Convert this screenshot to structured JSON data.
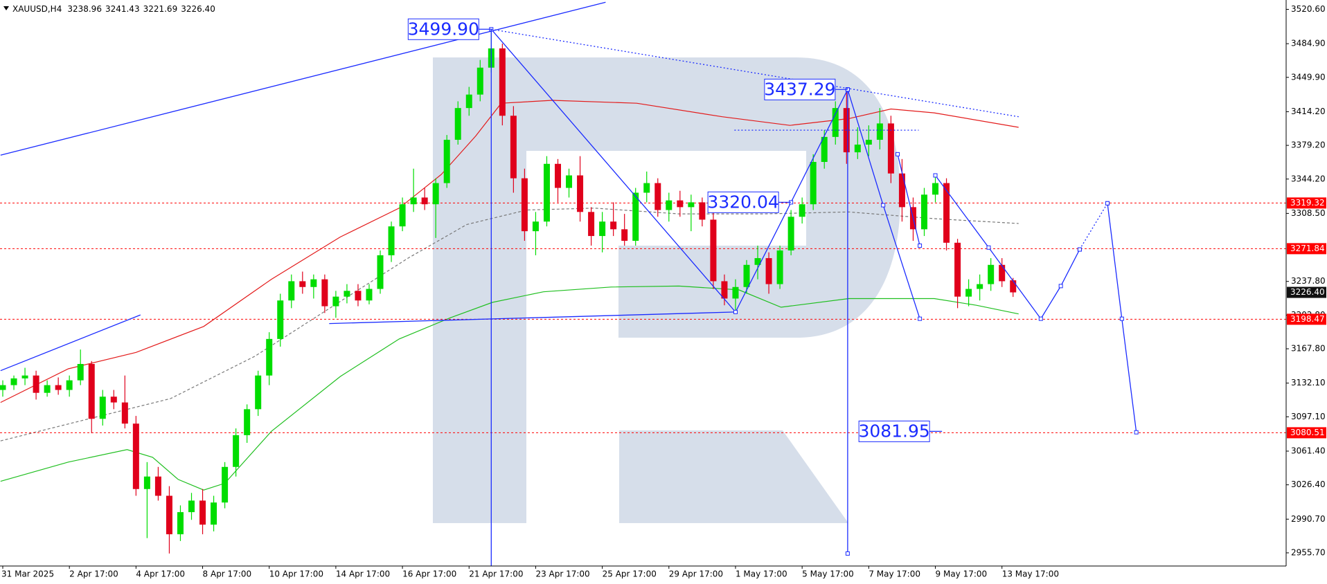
{
  "chart_data": {
    "type": "candlestick",
    "header": {
      "symbol": "XAUUSD,H4",
      "ohlc": [
        "3238.96",
        "3241.43",
        "3221.69",
        "3226.40"
      ]
    },
    "categories": [
      "31 Mar 2025",
      null,
      null,
      null,
      null,
      null,
      "2 Apr 17:00",
      null,
      null,
      null,
      null,
      null,
      "4 Apr 17:00",
      null,
      null,
      null,
      null,
      null,
      "8 Apr 17:00",
      null,
      null,
      null,
      null,
      null,
      "10 Apr 17:00",
      null,
      null,
      null,
      null,
      null,
      "14 Apr 17:00",
      null,
      null,
      null,
      null,
      null,
      "16 Apr 17:00",
      null,
      null,
      null,
      null,
      null,
      "21 Apr 17:00",
      null,
      null,
      null,
      null,
      null,
      "23 Apr 17:00",
      null,
      null,
      null,
      null,
      null,
      "25 Apr 17:00",
      null,
      null,
      null,
      null,
      null,
      "29 Apr 17:00",
      null,
      null,
      null,
      null,
      null,
      "1 May 17:00",
      null,
      null,
      null,
      null,
      null,
      "5 May 17:00",
      null,
      null,
      null,
      null,
      null,
      "7 May 17:00",
      null,
      null,
      null,
      null,
      null,
      "9 May 17:00",
      null,
      null,
      null,
      null,
      null,
      "13 May 17:00",
      null
    ],
    "open": [
      3125,
      3130,
      3137,
      3140,
      3122,
      3130,
      3125,
      3135,
      3152,
      3095,
      3118,
      3112,
      3090,
      3022,
      3035,
      3015,
      2975,
      2998,
      3010,
      2985,
      3008,
      3045,
      3078,
      3105,
      3140,
      3178,
      3218,
      3238,
      3232,
      3240,
      3212,
      3222,
      3228,
      3218,
      3230,
      3265,
      3295,
      3318,
      3325,
      3318,
      3340,
      3385,
      3418,
      3432,
      3460,
      3480,
      3410,
      3345,
      3290,
      3300,
      3360,
      3335,
      3348,
      3310,
      3285,
      3300,
      3292,
      3280,
      3330,
      3340,
      3312,
      3322,
      3315,
      3320,
      3302,
      3238,
      3220,
      3232,
      3255,
      3262,
      3235,
      3270,
      3305,
      3318,
      3362,
      3388,
      3418,
      3372,
      3380,
      3385,
      3402,
      3350,
      3315,
      3292,
      3328,
      3340,
      3278,
      3222,
      3230,
      3235,
      3255,
      3238.96
    ],
    "high": [
      3135,
      3140,
      3148,
      3145,
      3135,
      3138,
      3140,
      3167,
      3155,
      3125,
      3125,
      3140,
      3098,
      3050,
      3045,
      3025,
      3005,
      3018,
      3022,
      3015,
      3050,
      3085,
      3110,
      3145,
      3185,
      3225,
      3245,
      3248,
      3245,
      3245,
      3228,
      3235,
      3235,
      3235,
      3270,
      3300,
      3325,
      3355,
      3335,
      3345,
      3390,
      3425,
      3440,
      3468,
      3499.9,
      3485,
      3420,
      3355,
      3310,
      3368,
      3365,
      3355,
      3368,
      3315,
      3310,
      3320,
      3308,
      3335,
      3352,
      3345,
      3330,
      3332,
      3328,
      3325,
      3310,
      3245,
      3240,
      3260,
      3275,
      3268,
      3275,
      3312,
      3325,
      3370,
      3395,
      3425,
      3437.29,
      3398,
      3400,
      3418,
      3410,
      3365,
      3325,
      3335,
      3348,
      3345,
      3282,
      3240,
      3245,
      3262,
      3262,
      3241.43
    ],
    "low": [
      3118,
      3125,
      3130,
      3115,
      3118,
      3120,
      3118,
      3130,
      3080,
      3088,
      3105,
      3085,
      3015,
      2971,
      3010,
      2955,
      2968,
      2990,
      2975,
      2978,
      3002,
      3035,
      3070,
      3098,
      3130,
      3170,
      3210,
      3225,
      3220,
      3205,
      3200,
      3215,
      3212,
      3214,
      3225,
      3258,
      3290,
      3310,
      3312,
      3283,
      3335,
      3380,
      3410,
      3425,
      3455,
      3400,
      3330,
      3280,
      3265,
      3295,
      3320,
      3325,
      3300,
      3275,
      3268,
      3285,
      3275,
      3275,
      3320,
      3305,
      3300,
      3305,
      3290,
      3295,
      3230,
      3213,
      3208,
      3225,
      3240,
      3225,
      3230,
      3265,
      3298,
      3312,
      3355,
      3380,
      3360,
      3365,
      3368,
      3375,
      3340,
      3300,
      3280,
      3285,
      3320,
      3270,
      3210,
      3212,
      3218,
      3228,
      3232,
      3221.69
    ],
    "close": [
      3130,
      3137,
      3140,
      3122,
      3130,
      3125,
      3135,
      3152,
      3095,
      3118,
      3112,
      3090,
      3022,
      3035,
      3015,
      2975,
      2998,
      3010,
      2985,
      3008,
      3045,
      3078,
      3105,
      3140,
      3178,
      3218,
      3238,
      3232,
      3240,
      3212,
      3222,
      3228,
      3218,
      3230,
      3265,
      3295,
      3318,
      3325,
      3318,
      3340,
      3385,
      3418,
      3432,
      3460,
      3480,
      3410,
      3345,
      3290,
      3300,
      3360,
      3335,
      3348,
      3310,
      3285,
      3300,
      3292,
      3280,
      3330,
      3340,
      3312,
      3322,
      3315,
      3320,
      3302,
      3238,
      3220,
      3232,
      3255,
      3262,
      3235,
      3270,
      3305,
      3318,
      3362,
      3388,
      3418,
      3372,
      3380,
      3385,
      3402,
      3350,
      3315,
      3292,
      3328,
      3340,
      3278,
      3222,
      3230,
      3235,
      3255,
      3238,
      3226.4
    ],
    "colors": {
      "up": "#00dd00",
      "down": "#e0001b",
      "drawing": "#1a2bff",
      "axis": "#000000"
    },
    "ylim": [
      2942,
      3530.3
    ],
    "yticks": [
      {
        "value": 3520.6,
        "label": "3520.60"
      },
      {
        "value": 3484.9,
        "label": "3484.90"
      },
      {
        "value": 3449.9,
        "label": "3449.90"
      },
      {
        "value": 3414.2,
        "label": "3414.20"
      },
      {
        "value": 3379.2,
        "label": "3379.20"
      },
      {
        "value": 3344.2,
        "label": "3344.20"
      },
      {
        "value": 3308.5,
        "label": "3308.50"
      },
      {
        "value": 3237.8,
        "label": "3237.80"
      },
      {
        "value": 3202.8,
        "label": "3202.80"
      },
      {
        "value": 3167.8,
        "label": "3167.80"
      },
      {
        "value": 3132.1,
        "label": "3132.10"
      },
      {
        "value": 3097.1,
        "label": "3097.10"
      },
      {
        "value": 3061.4,
        "label": "3061.40"
      },
      {
        "value": 3026.4,
        "label": "3026.40"
      },
      {
        "value": 2990.7,
        "label": "2990.70"
      },
      {
        "value": 2955.7,
        "label": "2955.70"
      }
    ],
    "levels": [
      {
        "value": 3319.32,
        "color": "#ff0000"
      },
      {
        "value": 3271.84,
        "color": "#ff0000"
      },
      {
        "value": 3198.47,
        "color": "#ff0000"
      },
      {
        "value": 3080.51,
        "color": "#ff0000"
      }
    ],
    "current_price": {
      "value": 3226.4,
      "label": "3226.40",
      "color": "#111111"
    },
    "moving_averages": [
      {
        "color": "#e31a1a",
        "style": "solid",
        "x": [
          -0.2,
          5.9,
          12.0,
          18.1,
          24.2,
          30.4,
          35.7,
          39.5,
          42.6,
          44.9,
          49.5,
          57.1,
          64.8,
          70.9,
          76.2,
          80.0,
          83.9,
          91.5
        ],
        "values": [
          3112,
          3147,
          3164,
          3191,
          3240,
          3284,
          3314,
          3349,
          3389,
          3423,
          3426,
          3423,
          3409,
          3400,
          3407,
          3417,
          3413,
          3398
        ]
      },
      {
        "color": "#1fbf1f",
        "style": "solid",
        "x": [
          -0.2,
          5.9,
          11.2,
          13.5,
          15.8,
          18.1,
          20.0,
          24.2,
          30.4,
          35.7,
          40.3,
          44.1,
          48.7,
          54.8,
          60.9,
          66.3,
          70.1,
          76.2,
          83.9,
          87.7,
          91.5
        ],
        "values": [
          3030,
          3050,
          3063,
          3055,
          3032,
          3021,
          3028,
          3082,
          3139,
          3178,
          3200,
          3216,
          3227,
          3232,
          3233,
          3229,
          3211,
          3220,
          3220,
          3213,
          3204
        ]
      },
      {
        "color": "#777777",
        "style": "dashed",
        "x": [
          -0.2,
          7.4,
          15.1,
          22.7,
          30.4,
          36.5,
          41.8,
          47.2,
          53.3,
          60.9,
          68.6,
          76.2,
          83.9,
          91.5
        ],
        "values": [
          3072,
          3094,
          3116,
          3160,
          3217,
          3262,
          3297,
          3312,
          3314,
          3308,
          3308,
          3310,
          3303,
          3298
        ]
      }
    ],
    "drawings": [
      {
        "style": "solid",
        "markers": false,
        "x": [
          -0.2,
          54.3
        ],
        "values": [
          3369,
          3528
        ]
      },
      {
        "style": "solid",
        "markers": false,
        "x": [
          -0.2,
          12.4
        ],
        "values": [
          3145,
          3203
        ]
      },
      {
        "style": "solid",
        "markers": false,
        "x": [
          29.4,
          66.0
        ],
        "values": [
          3194,
          3206
        ]
      },
      {
        "style": "solid",
        "markers": true,
        "x": [
          44,
          66.0,
          71.0,
          76.1
        ],
        "values": [
          3499.9,
          3206,
          3320,
          3437.3
        ]
      },
      {
        "style": "solid",
        "markers": true,
        "x": [
          76.1,
          79.3,
          82.6
        ],
        "values": [
          3437.3,
          3317,
          3199
        ]
      },
      {
        "style": "solid",
        "markers": true,
        "x": [
          80.6,
          82.6
        ],
        "values": [
          3370,
          3275
        ]
      },
      {
        "style": "solid",
        "markers": true,
        "x": [
          84.0,
          88.8,
          93.5,
          95.3,
          97.0
        ],
        "values": [
          3348,
          3273,
          3199,
          3233,
          3271
        ]
      },
      {
        "style": "dotted",
        "markers": true,
        "x": [
          97.0,
          99.5
        ],
        "values": [
          3271,
          3319
        ]
      },
      {
        "style": "solid",
        "markers": true,
        "x": [
          99.5,
          100.8,
          102.1
        ],
        "values": [
          3319,
          3199,
          3081
        ]
      },
      {
        "style": "solid",
        "markers": false,
        "x": [
          44,
          44
        ],
        "values": [
          3499.9,
          2942
        ]
      },
      {
        "style": "solid",
        "markers": true,
        "x": [
          76.1,
          76.1
        ],
        "values": [
          3437.3,
          2955
        ]
      },
      {
        "style": "dotted",
        "markers": false,
        "x": [
          44,
          91.5
        ],
        "values": [
          3499.9,
          3409
        ]
      },
      {
        "style": "dotted",
        "markers": false,
        "x": [
          65.9,
          82.5
        ],
        "values": [
          3395,
          3395
        ]
      }
    ],
    "annotations": [
      {
        "value": 3499.9,
        "label": "3499.90",
        "x": 44
      },
      {
        "value": 3437.29,
        "label": "3437.29",
        "x": 76.1
      },
      {
        "value": 3320.04,
        "label": "3320.04",
        "x": 71.0
      },
      {
        "value": 3081.95,
        "label": "3081.95",
        "x": 84.6
      }
    ]
  }
}
